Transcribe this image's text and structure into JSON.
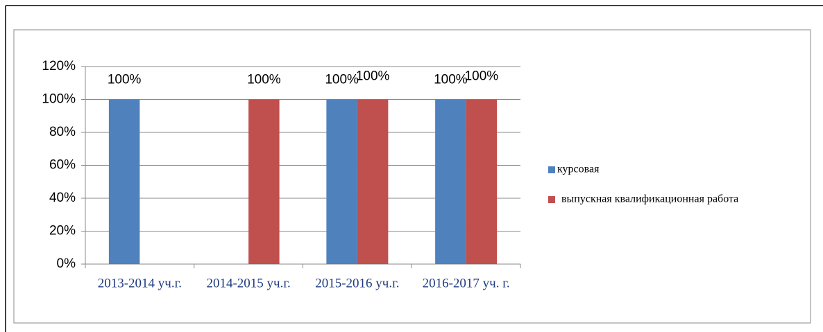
{
  "chart_data": {
    "type": "bar",
    "categories": [
      "2013-2014 уч.г.",
      "2014-2015 уч.г.",
      "2015-2016 уч.г.",
      "2016-2017 уч. г."
    ],
    "series": [
      {
        "name": "курсовая",
        "color": "#4f81bd",
        "values": [
          100,
          null,
          100,
          100
        ],
        "value_labels": [
          "100%",
          null,
          "100%",
          "100%"
        ]
      },
      {
        "name": "выпускная квалификационная работа",
        "color": "#c0504d",
        "values": [
          null,
          100,
          100,
          100
        ],
        "value_labels": [
          null,
          "100%",
          "100%",
          "100%"
        ]
      }
    ],
    "ylim": [
      0,
      120
    ],
    "yticks": [
      {
        "value": 0,
        "label": "0%"
      },
      {
        "value": 20,
        "label": "20%"
      },
      {
        "value": 40,
        "label": "40%"
      },
      {
        "value": 60,
        "label": "60%"
      },
      {
        "value": 80,
        "label": "80%"
      },
      {
        "value": 100,
        "label": "100%"
      },
      {
        "value": 120,
        "label": "120%"
      }
    ],
    "grid": true,
    "legend": "right"
  }
}
